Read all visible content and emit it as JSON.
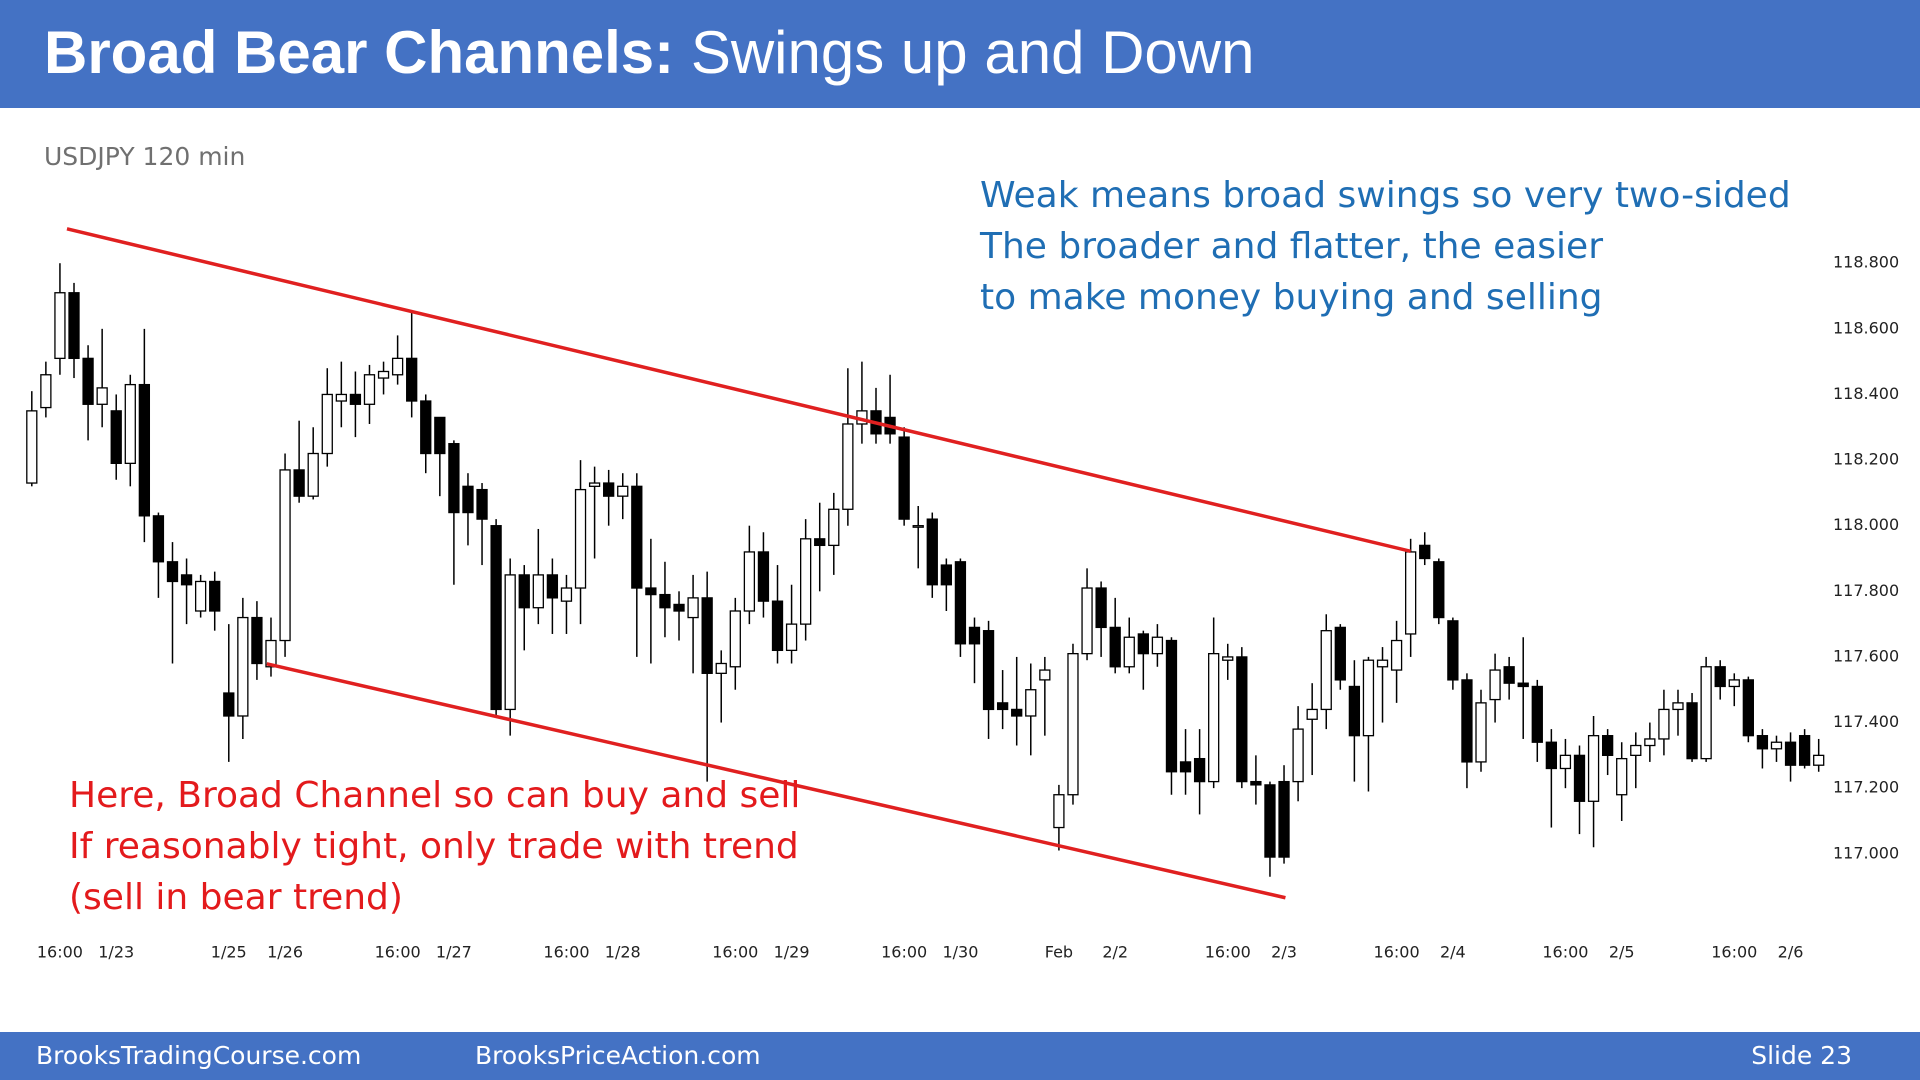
{
  "header": {
    "title_bold": "Broad Bear Channels:",
    "title_regular": "Swings up and Down"
  },
  "footer": {
    "left": "BrooksTradingCourse.com",
    "middle": "BrooksPriceAction.com",
    "right": "Slide  23"
  },
  "chart_data": {
    "type": "candlestick",
    "subtitle": "USDJPY 120 min",
    "up_color": "#ffffff",
    "down_color": "#000000",
    "edge_color": "#000000",
    "ylim": [
      116.85,
      118.95
    ],
    "yticks": [
      {
        "value": 117.0,
        "label": "117.000"
      },
      {
        "value": 117.2,
        "label": "117.200"
      },
      {
        "value": 117.4,
        "label": "117.400"
      },
      {
        "value": 117.6,
        "label": "117.600"
      },
      {
        "value": 117.8,
        "label": "117.800"
      },
      {
        "value": 118.0,
        "label": "118.000"
      },
      {
        "value": 118.2,
        "label": "118.200"
      },
      {
        "value": 118.4,
        "label": "118.400"
      },
      {
        "value": 118.6,
        "label": "118.600"
      },
      {
        "value": 118.8,
        "label": "118.800"
      }
    ],
    "categories": [
      null,
      null,
      "16:00",
      null,
      null,
      null,
      "1/23",
      null,
      null,
      null,
      null,
      null,
      null,
      null,
      "1/25",
      null,
      null,
      null,
      "1/26",
      null,
      null,
      null,
      null,
      null,
      null,
      null,
      "16:00",
      null,
      null,
      null,
      "1/27",
      null,
      null,
      null,
      null,
      null,
      null,
      null,
      "16:00",
      null,
      null,
      null,
      "1/28",
      null,
      null,
      null,
      null,
      null,
      null,
      null,
      "16:00",
      null,
      null,
      null,
      "1/29",
      null,
      null,
      null,
      null,
      null,
      null,
      null,
      "16:00",
      null,
      null,
      null,
      "1/30",
      null,
      null,
      null,
      null,
      null,
      null,
      "Feb",
      null,
      null,
      null,
      "2/2",
      null,
      null,
      null,
      null,
      null,
      null,
      null,
      "16:00",
      null,
      null,
      null,
      "2/3",
      null,
      null,
      null,
      null,
      null,
      null,
      null,
      "16:00",
      null,
      null,
      null,
      "2/4",
      null,
      null,
      null,
      null,
      null,
      null,
      null,
      "16:00",
      null,
      null,
      null,
      "2/5",
      null,
      null,
      null,
      null,
      null,
      null,
      null,
      "16:00",
      null,
      null,
      null,
      "2/6",
      null,
      null
    ],
    "ohlc": [
      [
        118.13,
        118.41,
        118.12,
        118.35
      ],
      [
        118.36,
        118.5,
        118.33,
        118.46
      ],
      [
        118.51,
        118.8,
        118.46,
        118.71
      ],
      [
        118.71,
        118.74,
        118.45,
        118.51
      ],
      [
        118.51,
        118.55,
        118.26,
        118.37
      ],
      [
        118.37,
        118.6,
        118.3,
        118.42
      ],
      [
        118.35,
        118.4,
        118.14,
        118.19
      ],
      [
        118.19,
        118.46,
        118.12,
        118.43
      ],
      [
        118.43,
        118.6,
        117.95,
        118.03
      ],
      [
        118.03,
        118.04,
        117.78,
        117.89
      ],
      [
        117.89,
        117.95,
        117.58,
        117.83
      ],
      [
        117.85,
        117.9,
        117.7,
        117.82
      ],
      [
        117.74,
        117.85,
        117.72,
        117.83
      ],
      [
        117.83,
        117.86,
        117.68,
        117.74
      ],
      [
        117.49,
        117.7,
        117.28,
        117.42
      ],
      [
        117.42,
        117.78,
        117.35,
        117.72
      ],
      [
        117.72,
        117.77,
        117.53,
        117.58
      ],
      [
        117.57,
        117.72,
        117.54,
        117.65
      ],
      [
        117.65,
        118.22,
        117.6,
        118.17
      ],
      [
        118.17,
        118.32,
        118.07,
        118.09
      ],
      [
        118.09,
        118.3,
        118.08,
        118.22
      ],
      [
        118.22,
        118.48,
        118.18,
        118.4
      ],
      [
        118.38,
        118.5,
        118.3,
        118.4
      ],
      [
        118.4,
        118.47,
        118.27,
        118.37
      ],
      [
        118.37,
        118.49,
        118.31,
        118.46
      ],
      [
        118.45,
        118.5,
        118.4,
        118.47
      ],
      [
        118.46,
        118.58,
        118.43,
        118.51
      ],
      [
        118.51,
        118.65,
        118.33,
        118.38
      ],
      [
        118.38,
        118.4,
        118.16,
        118.22
      ],
      [
        118.33,
        118.33,
        118.09,
        118.22
      ],
      [
        118.25,
        118.26,
        117.82,
        118.04
      ],
      [
        118.12,
        118.16,
        117.94,
        118.04
      ],
      [
        118.11,
        118.13,
        117.88,
        118.02
      ],
      [
        118.0,
        118.02,
        117.42,
        117.44
      ],
      [
        117.44,
        117.9,
        117.36,
        117.85
      ],
      [
        117.85,
        117.88,
        117.62,
        117.75
      ],
      [
        117.75,
        117.99,
        117.7,
        117.85
      ],
      [
        117.85,
        117.9,
        117.67,
        117.78
      ],
      [
        117.77,
        117.85,
        117.67,
        117.81
      ],
      [
        117.81,
        118.2,
        117.7,
        118.11
      ],
      [
        118.12,
        118.18,
        117.9,
        118.13
      ],
      [
        118.13,
        118.17,
        118.0,
        118.09
      ],
      [
        118.09,
        118.16,
        118.02,
        118.12
      ],
      [
        118.12,
        118.16,
        117.6,
        117.81
      ],
      [
        117.81,
        117.96,
        117.58,
        117.79
      ],
      [
        117.79,
        117.89,
        117.66,
        117.75
      ],
      [
        117.76,
        117.8,
        117.65,
        117.74
      ],
      [
        117.72,
        117.85,
        117.55,
        117.78
      ],
      [
        117.78,
        117.86,
        117.22,
        117.55
      ],
      [
        117.55,
        117.62,
        117.4,
        117.58
      ],
      [
        117.57,
        117.78,
        117.5,
        117.74
      ],
      [
        117.74,
        118.0,
        117.7,
        117.92
      ],
      [
        117.92,
        117.98,
        117.72,
        117.77
      ],
      [
        117.77,
        117.88,
        117.58,
        117.62
      ],
      [
        117.62,
        117.82,
        117.58,
        117.7
      ],
      [
        117.7,
        118.02,
        117.65,
        117.96
      ],
      [
        117.96,
        118.07,
        117.8,
        117.94
      ],
      [
        117.94,
        118.1,
        117.85,
        118.05
      ],
      [
        118.05,
        118.48,
        118.0,
        118.31
      ],
      [
        118.31,
        118.5,
        118.25,
        118.35
      ],
      [
        118.35,
        118.42,
        118.25,
        118.28
      ],
      [
        118.33,
        118.46,
        118.25,
        118.28
      ],
      [
        118.27,
        118.3,
        118.0,
        118.02
      ],
      [
        118.0,
        118.06,
        117.87,
        118.0
      ],
      [
        118.02,
        118.04,
        117.78,
        117.82
      ],
      [
        117.88,
        117.9,
        117.74,
        117.82
      ],
      [
        117.89,
        117.9,
        117.6,
        117.64
      ],
      [
        117.69,
        117.72,
        117.52,
        117.64
      ],
      [
        117.68,
        117.71,
        117.35,
        117.44
      ],
      [
        117.46,
        117.56,
        117.38,
        117.44
      ],
      [
        117.44,
        117.6,
        117.33,
        117.42
      ],
      [
        117.42,
        117.58,
        117.3,
        117.5
      ],
      [
        117.53,
        117.6,
        117.36,
        117.56
      ],
      [
        117.08,
        117.21,
        117.01,
        117.18
      ],
      [
        117.18,
        117.64,
        117.15,
        117.61
      ],
      [
        117.61,
        117.87,
        117.59,
        117.81
      ],
      [
        117.81,
        117.83,
        117.6,
        117.69
      ],
      [
        117.69,
        117.78,
        117.55,
        117.57
      ],
      [
        117.57,
        117.72,
        117.55,
        117.66
      ],
      [
        117.67,
        117.68,
        117.5,
        117.61
      ],
      [
        117.61,
        117.7,
        117.57,
        117.66
      ],
      [
        117.65,
        117.66,
        117.18,
        117.25
      ],
      [
        117.28,
        117.38,
        117.18,
        117.25
      ],
      [
        117.29,
        117.38,
        117.12,
        117.22
      ],
      [
        117.22,
        117.72,
        117.2,
        117.61
      ],
      [
        117.59,
        117.64,
        117.53,
        117.6
      ],
      [
        117.6,
        117.63,
        117.2,
        117.22
      ],
      [
        117.22,
        117.3,
        117.15,
        117.21
      ],
      [
        117.21,
        117.22,
        116.93,
        116.99
      ],
      [
        117.22,
        117.27,
        116.97,
        116.99
      ],
      [
        117.22,
        117.45,
        117.16,
        117.38
      ],
      [
        117.41,
        117.52,
        117.24,
        117.44
      ],
      [
        117.44,
        117.73,
        117.38,
        117.68
      ],
      [
        117.69,
        117.7,
        117.5,
        117.53
      ],
      [
        117.51,
        117.59,
        117.22,
        117.36
      ],
      [
        117.36,
        117.6,
        117.19,
        117.59
      ],
      [
        117.57,
        117.63,
        117.4,
        117.59
      ],
      [
        117.56,
        117.71,
        117.46,
        117.65
      ],
      [
        117.67,
        117.96,
        117.6,
        117.92
      ],
      [
        117.94,
        117.98,
        117.88,
        117.9
      ],
      [
        117.89,
        117.9,
        117.7,
        117.72
      ],
      [
        117.71,
        117.72,
        117.5,
        117.53
      ],
      [
        117.53,
        117.55,
        117.2,
        117.28
      ],
      [
        117.28,
        117.5,
        117.25,
        117.46
      ],
      [
        117.47,
        117.61,
        117.4,
        117.56
      ],
      [
        117.57,
        117.6,
        117.47,
        117.52
      ],
      [
        117.52,
        117.66,
        117.35,
        117.51
      ],
      [
        117.51,
        117.53,
        117.28,
        117.34
      ],
      [
        117.34,
        117.38,
        117.08,
        117.26
      ],
      [
        117.26,
        117.35,
        117.2,
        117.3
      ],
      [
        117.3,
        117.33,
        117.06,
        117.16
      ],
      [
        117.16,
        117.42,
        117.02,
        117.36
      ],
      [
        117.36,
        117.38,
        117.24,
        117.3
      ],
      [
        117.18,
        117.34,
        117.1,
        117.29
      ],
      [
        117.3,
        117.37,
        117.2,
        117.33
      ],
      [
        117.33,
        117.4,
        117.28,
        117.35
      ],
      [
        117.35,
        117.5,
        117.3,
        117.44
      ],
      [
        117.44,
        117.5,
        117.36,
        117.46
      ],
      [
        117.46,
        117.49,
        117.28,
        117.29
      ],
      [
        117.29,
        117.6,
        117.28,
        117.57
      ],
      [
        117.57,
        117.59,
        117.47,
        117.51
      ],
      [
        117.51,
        117.55,
        117.45,
        117.53
      ],
      [
        117.53,
        117.54,
        117.34,
        117.36
      ],
      [
        117.36,
        117.38,
        117.26,
        117.32
      ],
      [
        117.32,
        117.36,
        117.28,
        117.34
      ],
      [
        117.34,
        117.37,
        117.22,
        117.27
      ],
      [
        117.36,
        117.38,
        117.26,
        117.27
      ],
      [
        117.27,
        117.35,
        117.25,
        117.3
      ]
    ],
    "trendlines": [
      {
        "color": "#e02020",
        "points": [
          [
            2.5,
            118.905
          ],
          [
            98,
            117.922
          ]
        ]
      },
      {
        "color": "#e02020",
        "points": [
          [
            16.7,
            117.579
          ],
          [
            89.1,
            116.866
          ]
        ]
      }
    ],
    "annotations": [
      {
        "color": "#1f6eb4",
        "lines": [
          "Weak means broad swings so very two-sided",
          "The broader and flatter, the easier",
          "to make money buying and selling"
        ]
      },
      {
        "color": "#e31a1c",
        "lines": [
          "Here, Broad Channel so can buy and sell",
          "If reasonably tight, only trade with trend",
          "(sell in bear trend)"
        ]
      }
    ]
  }
}
